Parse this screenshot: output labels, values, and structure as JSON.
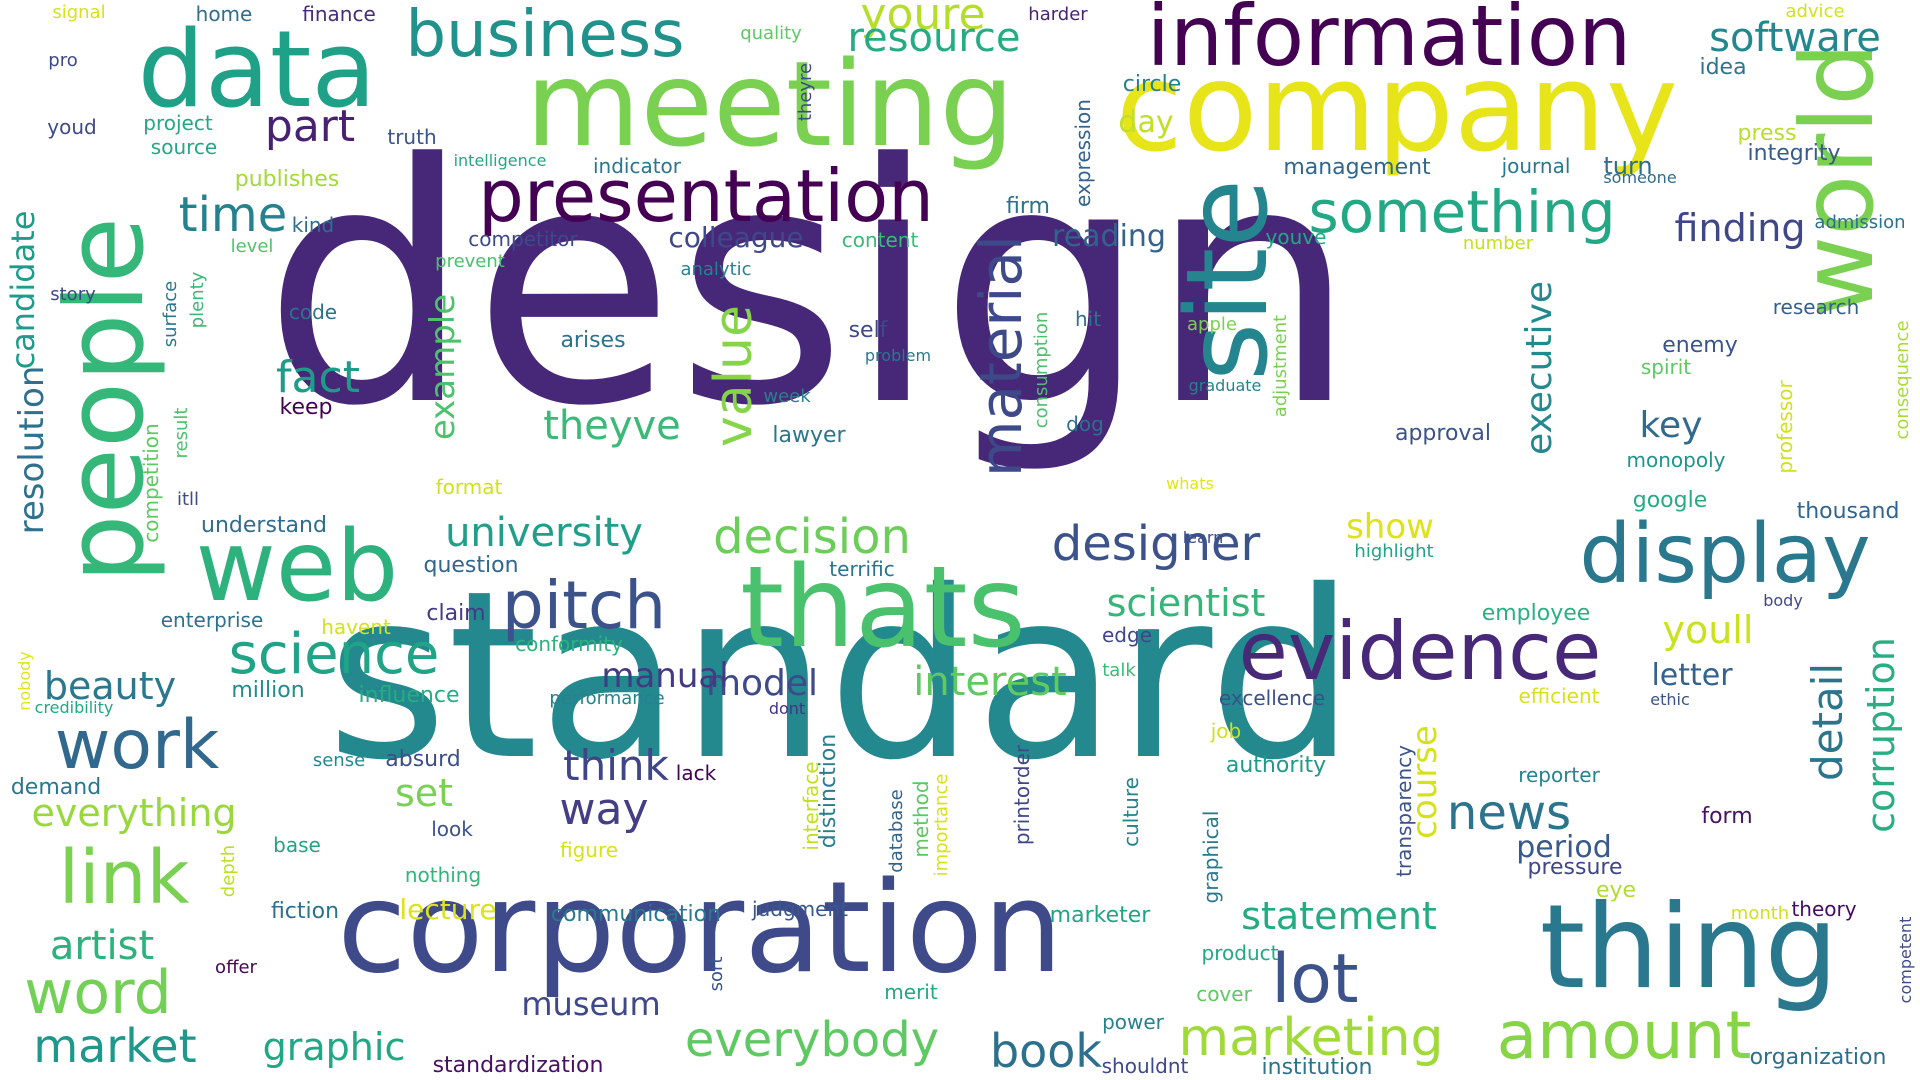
{
  "words": [
    {
      "text": "design",
      "color": "#472777"
    },
    {
      "text": "standard",
      "color": "#23898e"
    },
    {
      "text": "corporation",
      "color": "#3e4a89"
    },
    {
      "text": "meeting",
      "color": "#7ad151"
    },
    {
      "text": "company",
      "color": "#e7e419"
    },
    {
      "text": "information",
      "color": "#440154"
    },
    {
      "text": "data",
      "color": "#1fa187"
    },
    {
      "text": "people",
      "color": "#35b779"
    },
    {
      "text": "thats",
      "color": "#4ac16d"
    },
    {
      "text": "web",
      "color": "#2db27d"
    },
    {
      "text": "thing",
      "color": "#2a788e"
    },
    {
      "text": "site",
      "color": "#25858e"
    },
    {
      "text": "world",
      "color": "#7ad151"
    },
    {
      "text": "presentation",
      "color": "#440154"
    },
    {
      "text": "evidence",
      "color": "#482878"
    },
    {
      "text": "display",
      "color": "#2a788e"
    },
    {
      "text": "business",
      "color": "#21918c"
    },
    {
      "text": "pitch",
      "color": "#3b528b"
    },
    {
      "text": "link",
      "color": "#7ad151"
    },
    {
      "text": "work",
      "color": "#31688e"
    },
    {
      "text": "word",
      "color": "#73d056"
    },
    {
      "text": "lot",
      "color": "#3b528b"
    },
    {
      "text": "amount",
      "color": "#86d549"
    },
    {
      "text": "something",
      "color": "#22a884"
    },
    {
      "text": "science",
      "color": "#20a386"
    },
    {
      "text": "material",
      "color": "#3e4989"
    },
    {
      "text": "value",
      "color": "#86d549"
    },
    {
      "text": "marketing",
      "color": "#a0da39"
    },
    {
      "text": "everybody",
      "color": "#5ec962"
    },
    {
      "text": "decision",
      "color": "#6ccd5a"
    },
    {
      "text": "designer",
      "color": "#3b528b"
    },
    {
      "text": "university",
      "color": "#1f9e89"
    },
    {
      "text": "time",
      "color": "#26818e"
    },
    {
      "text": "fact",
      "color": "#1e9c89"
    },
    {
      "text": "market",
      "color": "#1f978b"
    },
    {
      "text": "graphic",
      "color": "#22a785"
    },
    {
      "text": "book",
      "color": "#2d708e"
    },
    {
      "text": "news",
      "color": "#2c738e"
    },
    {
      "text": "software",
      "color": "#23888e"
    },
    {
      "text": "youre",
      "color": "#b5de2b"
    },
    {
      "text": "resource",
      "color": "#25ac82"
    },
    {
      "text": "part",
      "color": "#482173"
    },
    {
      "text": "candidate",
      "color": "#1e9b8a"
    },
    {
      "text": "beauty",
      "color": "#2a778e"
    },
    {
      "text": "artist",
      "color": "#2db27d"
    },
    {
      "text": "resolution",
      "color": "#2d718e"
    },
    {
      "text": "example",
      "color": "#4cc26c"
    },
    {
      "text": "theyve",
      "color": "#3aba76"
    },
    {
      "text": "scientist",
      "color": "#34b679"
    },
    {
      "text": "interest",
      "color": "#60ca60"
    },
    {
      "text": "everything",
      "color": "#99d83d"
    },
    {
      "text": "statement",
      "color": "#25ab82"
    },
    {
      "text": "executive",
      "color": "#23898e"
    },
    {
      "text": "detail",
      "color": "#2b748e"
    },
    {
      "text": "corruption",
      "color": "#28ae80"
    },
    {
      "text": "finding",
      "color": "#3f4788"
    },
    {
      "text": "model",
      "color": "#3e4a89"
    },
    {
      "text": "manual",
      "color": "#443a83"
    },
    {
      "text": "think",
      "color": "#404588"
    },
    {
      "text": "way",
      "color": "#433e85"
    },
    {
      "text": "museum",
      "color": "#3f4889"
    },
    {
      "text": "set",
      "color": "#7ad151"
    },
    {
      "text": "course",
      "color": "#d5e21a"
    },
    {
      "text": "youll",
      "color": "#cae11f"
    },
    {
      "text": "key",
      "color": "#306a8e"
    },
    {
      "text": "letter",
      "color": "#34618d"
    },
    {
      "text": "period",
      "color": "#38598c"
    },
    {
      "text": "show",
      "color": "#dde318"
    },
    {
      "text": "colleague",
      "color": "#3f4889"
    },
    {
      "text": "reading",
      "color": "#33628d"
    },
    {
      "text": "day",
      "color": "#c0df25"
    },
    {
      "text": "lecture",
      "color": "#dde318"
    },
    {
      "text": "integrity",
      "color": "#365c8d"
    },
    {
      "text": "management",
      "color": "#31678e"
    },
    {
      "text": "turn",
      "color": "#2e6d8e"
    },
    {
      "text": "journal",
      "color": "#2a788e"
    },
    {
      "text": "press",
      "color": "#b8de29"
    },
    {
      "text": "idea",
      "color": "#2b758e"
    },
    {
      "text": "circle",
      "color": "#277f8e"
    },
    {
      "text": "admission",
      "color": "#2e6f8e"
    },
    {
      "text": "someone",
      "color": "#2f6c8e"
    },
    {
      "text": "expression",
      "color": "#33638d"
    },
    {
      "text": "firm",
      "color": "#2c728e"
    },
    {
      "text": "youve",
      "color": "#22a884"
    },
    {
      "text": "number",
      "color": "#c2df23"
    },
    {
      "text": "research",
      "color": "#355f8d"
    },
    {
      "text": "enemy",
      "color": "#3a548c"
    },
    {
      "text": "spirit",
      "color": "#5ec962"
    },
    {
      "text": "professor",
      "color": "#d2e21b"
    },
    {
      "text": "consequence",
      "color": "#a8db34"
    },
    {
      "text": "monopoly",
      "color": "#1f948c"
    },
    {
      "text": "google",
      "color": "#25ac82"
    },
    {
      "text": "thousand",
      "color": "#32658e"
    },
    {
      "text": "highlight",
      "color": "#20a386"
    },
    {
      "text": "whats",
      "color": "#e2e418"
    },
    {
      "text": "learn",
      "color": "#3e4c8a"
    },
    {
      "text": "body",
      "color": "#3e4989"
    },
    {
      "text": "employee",
      "color": "#2ab07f"
    },
    {
      "text": "edge",
      "color": "#404688"
    },
    {
      "text": "talk",
      "color": "#3bbb75"
    },
    {
      "text": "excellence",
      "color": "#3c4f8a"
    },
    {
      "text": "efficient",
      "color": "#d8e219"
    },
    {
      "text": "ethic",
      "color": "#3b528b"
    },
    {
      "text": "job",
      "color": "#cde11d"
    },
    {
      "text": "authority",
      "color": "#1f998a"
    },
    {
      "text": "reporter",
      "color": "#26828e"
    },
    {
      "text": "form",
      "color": "#471365"
    },
    {
      "text": "pressure",
      "color": "#3f4788"
    },
    {
      "text": "eye",
      "color": "#b0dd2f"
    },
    {
      "text": "month",
      "color": "#d0e11c"
    },
    {
      "text": "theory",
      "color": "#450a69"
    },
    {
      "text": "competent",
      "color": "#3e4a89"
    },
    {
      "text": "organization",
      "color": "#2e6e8e"
    },
    {
      "text": "institution",
      "color": "#2c738e"
    },
    {
      "text": "shouldnt",
      "color": "#3e4989"
    },
    {
      "text": "power",
      "color": "#26828e"
    },
    {
      "text": "cover",
      "color": "#5ec962"
    },
    {
      "text": "product",
      "color": "#23a983"
    },
    {
      "text": "marketer",
      "color": "#20a486"
    },
    {
      "text": "graphical",
      "color": "#2a788e"
    },
    {
      "text": "transparency",
      "color": "#3b528b"
    },
    {
      "text": "culture",
      "color": "#26828e"
    },
    {
      "text": "printorder",
      "color": "#3f4788"
    },
    {
      "text": "merit",
      "color": "#22a884"
    },
    {
      "text": "sort",
      "color": "#3a548c"
    },
    {
      "text": "method",
      "color": "#5cc863"
    },
    {
      "text": "importance",
      "color": "#d8e219"
    },
    {
      "text": "database",
      "color": "#33638d"
    },
    {
      "text": "judgment",
      "color": "#38588c"
    },
    {
      "text": "distinction",
      "color": "#287d8e"
    },
    {
      "text": "interface",
      "color": "#c2df23"
    },
    {
      "text": "communication",
      "color": "#2a788e"
    },
    {
      "text": "standardization",
      "color": "#471063"
    },
    {
      "text": "fiction",
      "color": "#2d718e"
    },
    {
      "text": "nothing",
      "color": "#31b57b"
    },
    {
      "text": "offer",
      "color": "#450559"
    },
    {
      "text": "figure",
      "color": "#d8e219"
    },
    {
      "text": "look",
      "color": "#3b528b"
    },
    {
      "text": "absurd",
      "color": "#3d4e8a"
    },
    {
      "text": "sense",
      "color": "#23898e"
    },
    {
      "text": "lack",
      "color": "#440154"
    },
    {
      "text": "depth",
      "color": "#bddf26"
    },
    {
      "text": "base",
      "color": "#20a486"
    },
    {
      "text": "demand",
      "color": "#2b758e"
    },
    {
      "text": "credibility",
      "color": "#22a785"
    },
    {
      "text": "nobody",
      "color": "#e2e418"
    },
    {
      "text": "million",
      "color": "#238a8d"
    },
    {
      "text": "influence",
      "color": "#26ad81"
    },
    {
      "text": "performance",
      "color": "#26828e"
    },
    {
      "text": "dont",
      "color": "#46337f"
    },
    {
      "text": "enterprise",
      "color": "#2c728e"
    },
    {
      "text": "havent",
      "color": "#d2e21b"
    },
    {
      "text": "conformity",
      "color": "#2db27d"
    },
    {
      "text": "claim",
      "color": "#443983"
    },
    {
      "text": "question",
      "color": "#31668e"
    },
    {
      "text": "terrific",
      "color": "#2b748e"
    },
    {
      "text": "understand",
      "color": "#2f6c8e"
    },
    {
      "text": "competition",
      "color": "#5ec962"
    },
    {
      "text": "result",
      "color": "#4ac16d"
    },
    {
      "text": "itll",
      "color": "#3e4a89"
    },
    {
      "text": "format",
      "color": "#d0e11c"
    },
    {
      "text": "keep",
      "color": "#440154"
    },
    {
      "text": "lawyer",
      "color": "#2b758e"
    },
    {
      "text": "week",
      "color": "#26828e"
    },
    {
      "text": "problem",
      "color": "#2a788e"
    },
    {
      "text": "self",
      "color": "#3e4989"
    },
    {
      "text": "arises",
      "color": "#2c728e"
    },
    {
      "text": "code",
      "color": "#2c728e"
    },
    {
      "text": "story",
      "color": "#3f4788"
    },
    {
      "text": "surface",
      "color": "#2a788e"
    },
    {
      "text": "plenty",
      "color": "#3aba76"
    },
    {
      "text": "level",
      "color": "#4ec36b"
    },
    {
      "text": "kind",
      "color": "#2e6f8e"
    },
    {
      "text": "publishes",
      "color": "#a2da37"
    },
    {
      "text": "source",
      "color": "#22a884"
    },
    {
      "text": "truth",
      "color": "#3b528b"
    },
    {
      "text": "youd",
      "color": "#3e4989"
    },
    {
      "text": "project",
      "color": "#22a884"
    },
    {
      "text": "pro",
      "color": "#3e4989"
    },
    {
      "text": "signal",
      "color": "#d8e219"
    },
    {
      "text": "home",
      "color": "#2e6e8e"
    },
    {
      "text": "finance",
      "color": "#472c7a"
    },
    {
      "text": "quality",
      "color": "#5ec962"
    },
    {
      "text": "theyre",
      "color": "#3e4989"
    },
    {
      "text": "harder",
      "color": "#482475"
    },
    {
      "text": "advice",
      "color": "#d2e21b"
    },
    {
      "text": "intelligence",
      "color": "#22a884"
    },
    {
      "text": "indicator",
      "color": "#2b758e"
    },
    {
      "text": "competitor",
      "color": "#3e4989"
    },
    {
      "text": "prevent",
      "color": "#4ac16d"
    },
    {
      "text": "analytic",
      "color": "#26828e"
    },
    {
      "text": "content",
      "color": "#3aba76"
    },
    {
      "text": "consumption",
      "color": "#4ac16d"
    },
    {
      "text": "hit",
      "color": "#2c728e"
    },
    {
      "text": "dog",
      "color": "#2e6e8e"
    },
    {
      "text": "apple",
      "color": "#7ad151"
    },
    {
      "text": "graduate",
      "color": "#26828e"
    },
    {
      "text": "adjustment",
      "color": "#7ad151"
    },
    {
      "text": "approval",
      "color": "#3b528b"
    }
  ]
}
